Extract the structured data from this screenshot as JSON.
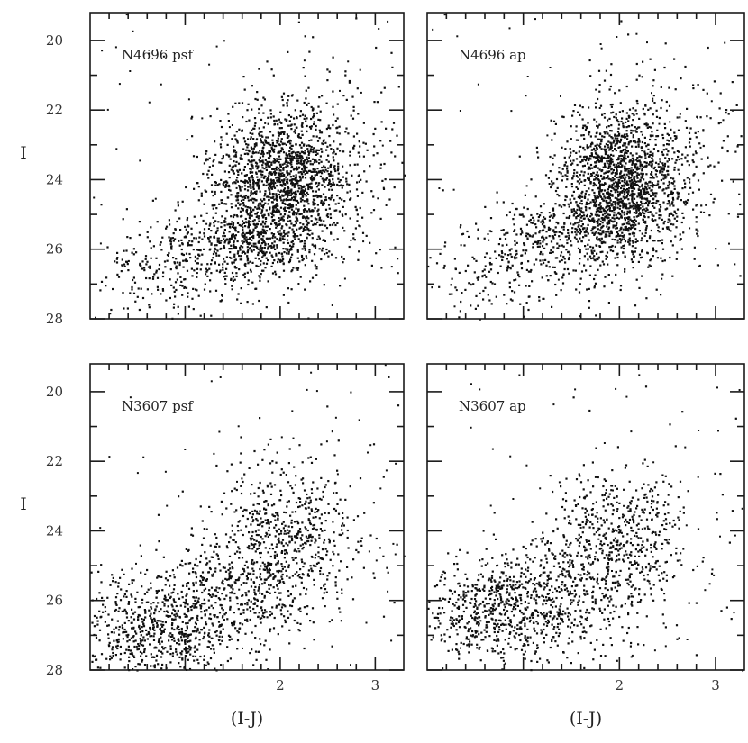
{
  "chart_data": [
    {
      "type": "scatter",
      "panel_label": "N4696 psf",
      "xlabel": "",
      "ylabel": "I",
      "xlim": [
        0,
        3.3
      ],
      "ylim": [
        28,
        19.2
      ],
      "yticks": [
        20,
        22,
        24,
        26,
        28
      ],
      "yticklabels": [
        "20",
        "22",
        "24",
        "26",
        "28"
      ],
      "xticks": [],
      "xticklabels": [],
      "clumps": [
        {
          "x": 2.0,
          "y": 24.1,
          "sx": 0.35,
          "sy": 1.1,
          "n": 1700
        },
        {
          "x": 1.55,
          "y": 25.8,
          "sx": 0.45,
          "sy": 0.5,
          "n": 400
        },
        {
          "x": 0.9,
          "y": 26.6,
          "sx": 0.6,
          "sy": 0.7,
          "n": 240
        },
        {
          "x": 2.7,
          "y": 23.0,
          "sx": 0.5,
          "sy": 1.6,
          "n": 160
        }
      ],
      "seed": 11
    },
    {
      "type": "scatter",
      "panel_label": "N4696 ap",
      "xlabel": "",
      "ylabel": "",
      "xlim": [
        0,
        3.3
      ],
      "ylim": [
        28,
        19.2
      ],
      "yticks": [
        20,
        22,
        24,
        26,
        28
      ],
      "yticklabels": [],
      "xticks": [],
      "xticklabels": [],
      "clumps": [
        {
          "x": 2.0,
          "y": 24.0,
          "sx": 0.32,
          "sy": 1.05,
          "n": 1600
        },
        {
          "x": 1.5,
          "y": 25.6,
          "sx": 0.5,
          "sy": 0.55,
          "n": 380
        },
        {
          "x": 0.8,
          "y": 26.5,
          "sx": 0.6,
          "sy": 0.75,
          "n": 230
        },
        {
          "x": 2.7,
          "y": 23.2,
          "sx": 0.5,
          "sy": 1.6,
          "n": 170
        }
      ],
      "seed": 29
    },
    {
      "type": "scatter",
      "panel_label": "N3607 psf",
      "xlabel": "(I-J)",
      "ylabel": "I",
      "xlim": [
        0,
        3.3
      ],
      "ylim": [
        28,
        19.2
      ],
      "yticks": [
        20,
        22,
        24,
        26,
        28
      ],
      "yticklabels": [
        "20",
        "22",
        "24",
        "26",
        "28"
      ],
      "xticks": [
        2,
        3
      ],
      "xticklabels": [
        "2",
        "3"
      ],
      "clumps": [
        {
          "x": 0.7,
          "y": 26.8,
          "sx": 0.45,
          "sy": 0.75,
          "n": 700
        },
        {
          "x": 1.5,
          "y": 25.6,
          "sx": 0.45,
          "sy": 0.9,
          "n": 450
        },
        {
          "x": 2.05,
          "y": 24.1,
          "sx": 0.35,
          "sy": 1.0,
          "n": 500
        },
        {
          "x": 2.5,
          "y": 24.0,
          "sx": 0.7,
          "sy": 1.8,
          "n": 90
        }
      ],
      "seed": 47
    },
    {
      "type": "scatter",
      "panel_label": "N3607 ap",
      "xlabel": "(I-J)",
      "ylabel": "",
      "xlim": [
        0,
        3.3
      ],
      "ylim": [
        28,
        19.2
      ],
      "yticks": [
        20,
        22,
        24,
        26,
        28
      ],
      "yticklabels": [],
      "xticks": [
        2,
        3
      ],
      "xticklabels": [
        "2",
        "3"
      ],
      "clumps": [
        {
          "x": 0.7,
          "y": 26.3,
          "sx": 0.45,
          "sy": 0.7,
          "n": 620
        },
        {
          "x": 1.4,
          "y": 25.7,
          "sx": 0.45,
          "sy": 0.9,
          "n": 380
        },
        {
          "x": 2.0,
          "y": 24.2,
          "sx": 0.33,
          "sy": 1.0,
          "n": 460
        },
        {
          "x": 2.5,
          "y": 24.2,
          "sx": 0.7,
          "sy": 1.8,
          "n": 90
        }
      ],
      "seed": 83
    }
  ],
  "colors": {
    "points": "#111111",
    "axes": "#1a1a1a",
    "background": "#ffffff"
  }
}
